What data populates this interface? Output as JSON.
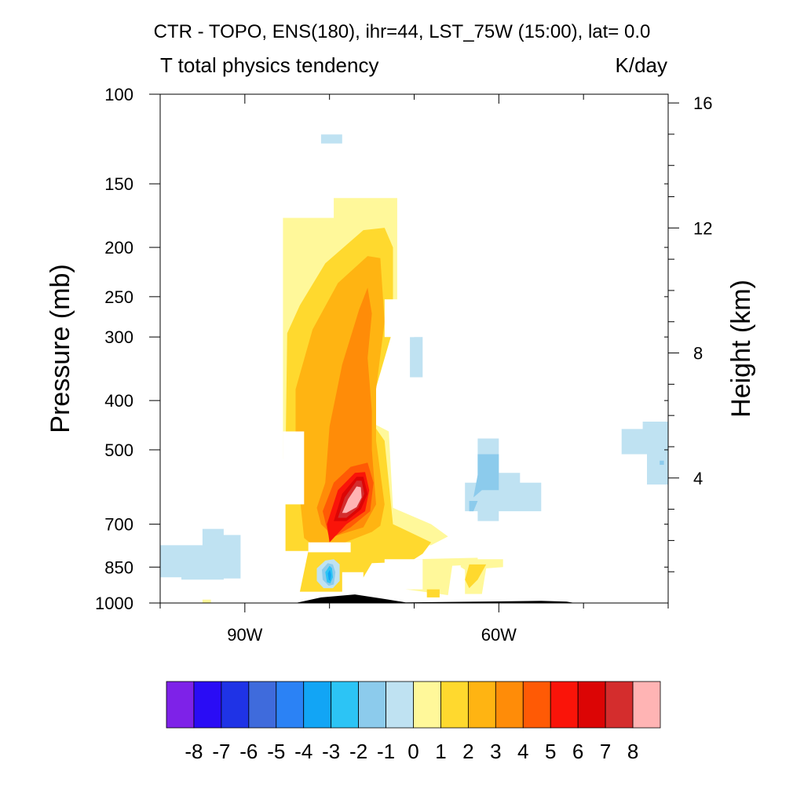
{
  "chart_data": {
    "type": "heatmap",
    "title": "CTR - TOPO, ENS(180), ihr=44, LST_75W (15:00), lat=  0.0",
    "subtitle_left": "T total physics tendency",
    "subtitle_right": "K/day",
    "ylabel": "Pressure (mb)",
    "ylabel_right": "Height (km)",
    "y_scale": "log",
    "grid": false,
    "ylim": [
      1000,
      100
    ],
    "y_ticks": [
      100,
      150,
      200,
      250,
      300,
      400,
      500,
      700,
      850,
      1000
    ],
    "y_tick_labels": [
      "100",
      "150",
      "200",
      "250",
      "300",
      "400",
      "500",
      "700",
      "850",
      "1000"
    ],
    "y_right_ticks": [
      4,
      8,
      12,
      16
    ],
    "y_right_tick_labels": [
      "4",
      "8",
      "12",
      "16"
    ],
    "x_ticks": [
      -90,
      -60
    ],
    "x_tick_labels": [
      "90W",
      "60W"
    ],
    "xlim": [
      -100,
      -40
    ],
    "colorbar": {
      "labels": [
        "-8",
        "-7",
        "-6",
        "-5",
        "-4",
        "-3",
        "-2",
        "-1",
        "0",
        "1",
        "2",
        "3",
        "4",
        "5",
        "6",
        "7",
        "8"
      ],
      "colors": [
        "#7e22e8",
        "#2a0cf5",
        "#1f33e6",
        "#3f6bdc",
        "#2b82f5",
        "#12a5f5",
        "#2cc4f5",
        "#8ccbec",
        "#bfe2f2",
        "#fff89a",
        "#ffd92e",
        "#ffb412",
        "#ff8c08",
        "#ff5a05",
        "#fa1409",
        "#dc0505",
        "#d42d2d",
        "#ffb4b4"
      ]
    },
    "regions": [
      {
        "level": 0,
        "value": "0 to 1",
        "pts": [
          [
            -85.5,
            175
          ],
          [
            -79.5,
            175
          ],
          [
            -79.5,
            160
          ],
          [
            -72,
            160
          ],
          [
            -72,
            260
          ],
          [
            -77,
            425
          ],
          [
            -73,
            460
          ],
          [
            -72.5,
            650
          ],
          [
            -68,
            700
          ],
          [
            -66,
            740
          ],
          [
            -68,
            770
          ],
          [
            -82,
            790
          ],
          [
            -85,
            745
          ],
          [
            -85,
            650
          ],
          [
            -85.5,
            520
          ]
        ]
      },
      {
        "level": 0,
        "value": "0 to 1",
        "pts": [
          [
            -70,
            820
          ],
          [
            -70,
            875
          ],
          [
            -72,
            935
          ],
          [
            -66,
            965
          ],
          [
            -65.5,
            845
          ],
          [
            -62.5,
            840
          ],
          [
            -62.5,
            815
          ]
        ]
      },
      {
        "level": 0,
        "value": "0 to 1",
        "pts": [
          [
            -95,
            985
          ],
          [
            -94,
            985
          ],
          [
            -94,
            1000
          ],
          [
            -95,
            1000
          ]
        ]
      },
      {
        "level": 0,
        "value": "0 to 1",
        "pts": [
          [
            -64.5,
            820
          ],
          [
            -59.5,
            820
          ],
          [
            -59.5,
            850
          ],
          [
            -61.5,
            855
          ],
          [
            -62,
            960
          ],
          [
            -64,
            960
          ],
          [
            -64,
            860
          ],
          [
            -64.5,
            850
          ]
        ]
      },
      {
        "level": 1,
        "value": "1 to 2",
        "pts": [
          [
            -85,
            295
          ],
          [
            -83.5,
            260
          ],
          [
            -80.5,
            215
          ],
          [
            -76,
            185
          ],
          [
            -73.5,
            183
          ],
          [
            -72.5,
            200
          ],
          [
            -72.5,
            290
          ],
          [
            -75.5,
            430
          ],
          [
            -73.5,
            480
          ],
          [
            -72.5,
            700
          ],
          [
            -68,
            760
          ],
          [
            -69,
            800
          ],
          [
            -70.5,
            830
          ],
          [
            -75,
            835
          ],
          [
            -77,
            950
          ],
          [
            -83.5,
            950
          ],
          [
            -82.5,
            790
          ],
          [
            -85.2,
            790
          ],
          [
            -85.2,
            520
          ]
        ]
      },
      {
        "level": 1,
        "value": "1 to 2",
        "pts": [
          [
            -63.5,
            840
          ],
          [
            -61.5,
            840
          ],
          [
            -62.5,
            900
          ],
          [
            -63.5,
            935
          ],
          [
            -64,
            900
          ]
        ]
      },
      {
        "level": 1,
        "value": "1 to 2",
        "pts": [
          [
            -68.5,
            940
          ],
          [
            -67,
            940
          ],
          [
            -67,
            975
          ],
          [
            -68.5,
            975
          ]
        ]
      },
      {
        "level": 2,
        "value": "2 to 3",
        "pts": [
          [
            -84,
            380
          ],
          [
            -82,
            290
          ],
          [
            -79,
            235
          ],
          [
            -75.5,
            208
          ],
          [
            -74,
            210
          ],
          [
            -73.5,
            280
          ],
          [
            -74.5,
            380
          ],
          [
            -74.5,
            480
          ],
          [
            -73.5,
            640
          ],
          [
            -74,
            705
          ],
          [
            -75,
            725
          ],
          [
            -79,
            770
          ],
          [
            -81.5,
            780
          ],
          [
            -83,
            745
          ],
          [
            -83.5,
            620
          ],
          [
            -84,
            500
          ]
        ]
      },
      {
        "level": 3,
        "value": "3 to 4",
        "pts": [
          [
            -80.5,
            580
          ],
          [
            -80,
            450
          ],
          [
            -78.5,
            340
          ],
          [
            -76.5,
            265
          ],
          [
            -75.5,
            240
          ],
          [
            -75,
            270
          ],
          [
            -75.5,
            330
          ],
          [
            -75,
            420
          ],
          [
            -75,
            500
          ],
          [
            -74.5,
            640
          ],
          [
            -76,
            710
          ],
          [
            -79.5,
            740
          ],
          [
            -81,
            700
          ],
          [
            -81.5,
            650
          ]
        ]
      },
      {
        "level": 4,
        "value": "4 to 5",
        "pts": [
          [
            -80.8,
            660
          ],
          [
            -79.5,
            580
          ],
          [
            -77.5,
            540
          ],
          [
            -75.5,
            530
          ],
          [
            -74.8,
            580
          ],
          [
            -75.2,
            660
          ],
          [
            -77.5,
            710
          ],
          [
            -80,
            750
          ]
        ]
      },
      {
        "level": 5,
        "value": "5 to 6",
        "pts": [
          [
            -80.3,
            700
          ],
          [
            -79,
            600
          ],
          [
            -77,
            555
          ],
          [
            -75.8,
            553
          ],
          [
            -75.3,
            600
          ],
          [
            -75.8,
            660
          ],
          [
            -78,
            700
          ],
          [
            -80,
            760
          ]
        ]
      },
      {
        "level": 6,
        "value": "6 to 7",
        "pts": [
          [
            -79.5,
            690
          ],
          [
            -78.5,
            610
          ],
          [
            -76.8,
            565
          ],
          [
            -76,
            565
          ],
          [
            -75.5,
            610
          ],
          [
            -76.3,
            655
          ],
          [
            -78,
            690
          ]
        ]
      },
      {
        "level": 7,
        "value": "7 to 8",
        "pts": [
          [
            -79,
            680
          ],
          [
            -78.2,
            620
          ],
          [
            -76.8,
            575
          ],
          [
            -76.2,
            575
          ],
          [
            -75.9,
            610
          ],
          [
            -76.6,
            650
          ],
          [
            -78,
            680
          ]
        ]
      },
      {
        "level": 8,
        "value": "> 8",
        "pts": [
          [
            -78.5,
            665
          ],
          [
            -77.8,
            625
          ],
          [
            -76.8,
            590
          ],
          [
            -76.3,
            592
          ],
          [
            -76.2,
            620
          ],
          [
            -76.8,
            648
          ],
          [
            -78,
            665
          ]
        ]
      },
      {
        "level": -1,
        "value": "-1 to 0",
        "pts": [
          [
            -100,
            770
          ],
          [
            -95,
            770
          ],
          [
            -95,
            715
          ],
          [
            -92.5,
            715
          ],
          [
            -92.5,
            735
          ],
          [
            -90.5,
            735
          ],
          [
            -90.5,
            895
          ],
          [
            -92.5,
            895
          ],
          [
            -92.5,
            900
          ],
          [
            -97.5,
            900
          ],
          [
            -97.5,
            890
          ],
          [
            -100,
            890
          ]
        ]
      },
      {
        "level": -1,
        "value": "-1 to 0",
        "pts": [
          [
            -81,
            120
          ],
          [
            -78.5,
            120
          ],
          [
            -78.5,
            125
          ],
          [
            -81,
            125
          ]
        ]
      },
      {
        "level": -1,
        "value": "-1 to 0",
        "pts": [
          [
            -70.5,
            300
          ],
          [
            -69,
            300
          ],
          [
            -69,
            360
          ],
          [
            -70.5,
            360
          ]
        ]
      },
      {
        "level": -1,
        "value": "-1 to 0",
        "pts": [
          [
            -62.5,
            475
          ],
          [
            -60,
            475
          ],
          [
            -60,
            555
          ],
          [
            -57.5,
            555
          ],
          [
            -57.5,
            580
          ],
          [
            -55,
            580
          ],
          [
            -55,
            660
          ],
          [
            -60,
            660
          ],
          [
            -60,
            690
          ],
          [
            -62.5,
            690
          ],
          [
            -62.5,
            660
          ],
          [
            -64,
            660
          ],
          [
            -64,
            580
          ],
          [
            -62.5,
            580
          ]
        ]
      },
      {
        "level": -1,
        "value": "-1 to 0",
        "pts": [
          [
            -45.5,
            455
          ],
          [
            -43,
            455
          ],
          [
            -43,
            440
          ],
          [
            -40,
            440
          ],
          [
            -40,
            585
          ],
          [
            -42.5,
            585
          ],
          [
            -42.5,
            510
          ],
          [
            -45.5,
            510
          ]
        ]
      },
      {
        "level": -1,
        "value": "-1 to 0",
        "pts": [
          [
            -81.5,
            855
          ],
          [
            -80.5,
            825
          ],
          [
            -79.5,
            820
          ],
          [
            -78.8,
            840
          ],
          [
            -78.8,
            905
          ],
          [
            -79.6,
            935
          ],
          [
            -80.7,
            935
          ],
          [
            -81.5,
            905
          ]
        ]
      },
      {
        "level": -2,
        "value": "-2 to -1",
        "pts": [
          [
            -62.5,
            510
          ],
          [
            -60,
            510
          ],
          [
            -60,
            600
          ],
          [
            -62,
            600
          ],
          [
            -63,
            620
          ],
          [
            -62.5,
            560
          ]
        ]
      },
      {
        "level": -2,
        "value": "-2 to -1",
        "pts": [
          [
            -63.5,
            630
          ],
          [
            -62.5,
            630
          ],
          [
            -63,
            660
          ],
          [
            -63.5,
            660
          ]
        ]
      },
      {
        "level": -2,
        "value": "-2 to -1",
        "pts": [
          [
            -41,
            525
          ],
          [
            -40.5,
            525
          ],
          [
            -40.5,
            535
          ],
          [
            -41,
            535
          ]
        ]
      },
      {
        "level": -2,
        "value": "-2 to -1",
        "pts": [
          [
            -80.9,
            860
          ],
          [
            -80.2,
            835
          ],
          [
            -79.6,
            840
          ],
          [
            -79.3,
            870
          ],
          [
            -79.5,
            920
          ],
          [
            -80.1,
            925
          ],
          [
            -80.8,
            900
          ]
        ]
      },
      {
        "level": -3,
        "value": "-3 to -2",
        "pts": [
          [
            -80.5,
            870
          ],
          [
            -80,
            845
          ],
          [
            -79.7,
            855
          ],
          [
            -79.6,
            890
          ],
          [
            -79.9,
            915
          ],
          [
            -80.3,
            910
          ]
        ]
      },
      {
        "level": -4,
        "value": "-4 to -3",
        "pts": [
          [
            -80.2,
            875
          ],
          [
            -79.95,
            860
          ],
          [
            -79.8,
            880
          ],
          [
            -79.9,
            905
          ],
          [
            -80.1,
            900
          ]
        ]
      }
    ],
    "masks": [
      {
        "pts": [
          [
            -73.5,
            253
          ],
          [
            -70,
            253
          ],
          [
            -70,
            300
          ],
          [
            -73.5,
            300
          ]
        ]
      },
      {
        "pts": [
          [
            -82.5,
            760
          ],
          [
            -77.5,
            760
          ],
          [
            -77.5,
            795
          ],
          [
            -82.5,
            795
          ]
        ]
      },
      {
        "pts": [
          [
            -85.5,
            460
          ],
          [
            -83,
            460
          ],
          [
            -83,
            640
          ],
          [
            -85.5,
            640
          ]
        ]
      },
      {
        "pts": [
          [
            -78.5,
            870
          ],
          [
            -76,
            870
          ],
          [
            -76,
            1000
          ],
          [
            -78.5,
            1000
          ]
        ]
      },
      {
        "pts": [
          [
            -73.5,
            820
          ],
          [
            -69,
            820
          ],
          [
            -69,
            940
          ],
          [
            -73.5,
            940
          ]
        ]
      }
    ],
    "terrain": [
      [
        -84,
        1000
      ],
      [
        -81,
        975
      ],
      [
        -77,
        962
      ],
      [
        -73,
        985
      ],
      [
        -71,
        997
      ],
      [
        -60,
        993
      ],
      [
        -55,
        990
      ],
      [
        -52,
        994
      ],
      [
        -51,
        1000
      ]
    ]
  }
}
